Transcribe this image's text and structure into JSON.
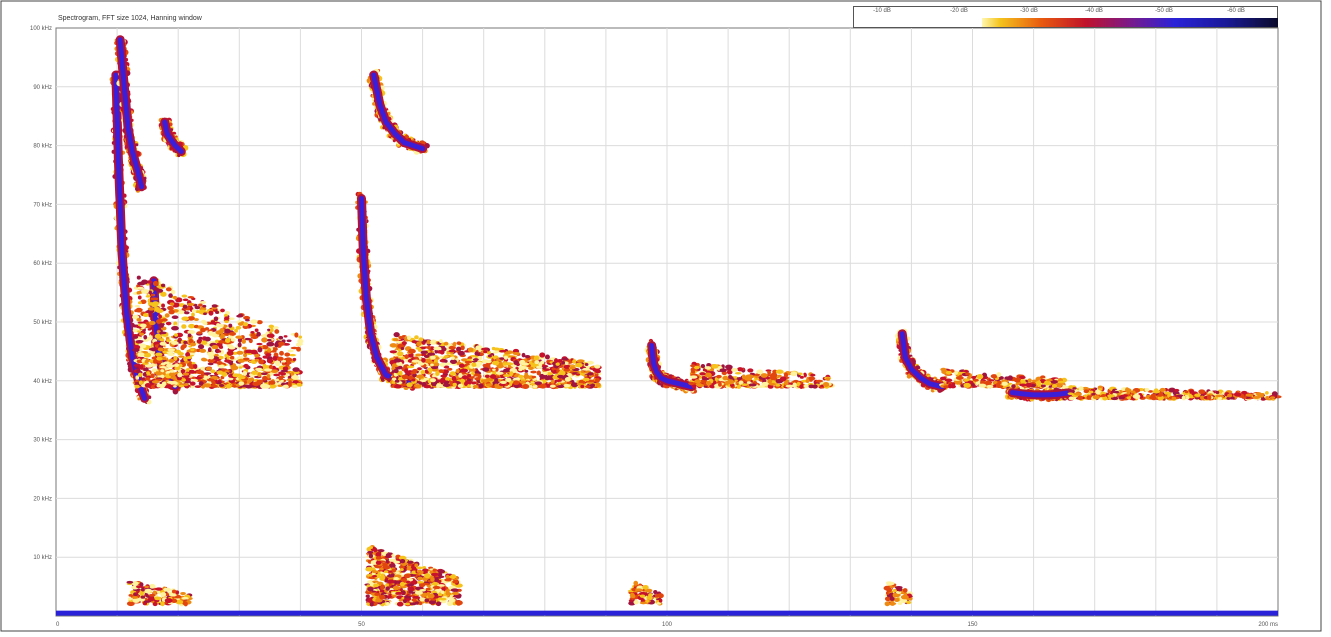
{
  "chart_data": {
    "type": "heatmap",
    "title": "Spectrogram, FFT size 1024, Hanning window",
    "xlabel": "",
    "ylabel": "",
    "x_tick_labels": [
      "0",
      "50",
      "100",
      "150",
      "200 ms"
    ],
    "x_tick_values": [
      0,
      50,
      100,
      150,
      200
    ],
    "xlim": [
      0,
      200
    ],
    "y_tick_labels": [
      "10 kHz",
      "20 kHz",
      "30 kHz",
      "40 kHz",
      "50 kHz",
      "60 kHz",
      "70 kHz",
      "80 kHz",
      "90 kHz",
      "100 kHz"
    ],
    "y_tick_values": [
      10,
      20,
      30,
      40,
      50,
      60,
      70,
      80,
      90,
      100
    ],
    "ylim": [
      0,
      100
    ],
    "grid": true,
    "colorbar": {
      "tick_labels": [
        "-10 dB",
        "-20 dB",
        "-30 dB",
        "-40 dB",
        "-50 dB",
        "-60 dB"
      ],
      "position": "top-right",
      "colors": [
        "#fff7b0",
        "#f4c41d",
        "#e85a0f",
        "#c0122a",
        "#7a1a8a",
        "#2a22d8",
        "#1a1a9a",
        "#0a0a2a"
      ]
    },
    "components": [
      {
        "kind": "fm_sweep",
        "t": [
          9.8,
          10.2,
          10.8,
          11.5,
          12.5,
          13.5,
          14.5
        ],
        "f": [
          92,
          78,
          62,
          52,
          44,
          40,
          37
        ]
      },
      {
        "kind": "fm_sweep",
        "t": [
          10.5,
          11.0,
          11.8,
          12.5,
          13.3,
          14.0
        ],
        "f": [
          98,
          92,
          83,
          79,
          76,
          73
        ]
      },
      {
        "kind": "fm_sweep",
        "t": [
          16.0,
          16.3,
          16.8,
          17.5,
          18.5,
          19.5
        ],
        "f": [
          57,
          50,
          45,
          42,
          40,
          39
        ]
      },
      {
        "kind": "fm_sweep",
        "t": [
          17.8,
          18.2,
          18.8,
          19.5,
          20.5
        ],
        "f": [
          84,
          82,
          81,
          80,
          79
        ]
      },
      {
        "kind": "fm_sweep",
        "t": [
          50.0,
          50.3,
          50.8,
          51.5,
          52.5,
          54.0,
          56.0,
          58.0
        ],
        "f": [
          71,
          62,
          54,
          48,
          44,
          41,
          40,
          39.5
        ]
      },
      {
        "kind": "fm_sweep",
        "t": [
          52.0,
          53.0,
          54.0,
          55.5,
          57.0,
          60.0
        ],
        "f": [
          92,
          87,
          84,
          82,
          80.5,
          79.5
        ]
      },
      {
        "kind": "fm_sweep",
        "t": [
          97.5,
          97.8,
          98.3,
          99.0,
          100.0,
          102.0,
          104.0
        ],
        "f": [
          46,
          43,
          41.5,
          40.5,
          40,
          39.5,
          39
        ]
      },
      {
        "kind": "fm_sweep",
        "t": [
          138.5,
          139.0,
          140.0,
          141.5,
          143.0,
          145.0
        ],
        "f": [
          48,
          44,
          42,
          40.5,
          39.5,
          39
        ]
      },
      {
        "kind": "fm_sweep",
        "t": [
          156.5,
          158.0,
          160.0,
          162.0,
          164.0,
          166.0
        ],
        "f": [
          38,
          37.8,
          37.6,
          37.6,
          37.7,
          38
        ]
      },
      {
        "kind": "echo_cloud",
        "t_range": [
          13,
          40
        ],
        "f_range": [
          39,
          58
        ]
      },
      {
        "kind": "echo_cloud",
        "t_range": [
          55,
          89
        ],
        "f_range": [
          39,
          48
        ]
      },
      {
        "kind": "echo_cloud",
        "t_range": [
          104,
          127
        ],
        "f_range": [
          39,
          43
        ]
      },
      {
        "kind": "echo_cloud",
        "t_range": [
          145,
          165
        ],
        "f_range": [
          39,
          42
        ]
      },
      {
        "kind": "echo_cloud",
        "t_range": [
          166,
          200
        ],
        "f_range": [
          37,
          39
        ]
      },
      {
        "kind": "low_burst",
        "t_range": [
          51,
          66
        ],
        "f_range": [
          2,
          12
        ]
      },
      {
        "kind": "low_burst",
        "t_range": [
          94,
          99
        ],
        "f_range": [
          2,
          6
        ]
      },
      {
        "kind": "low_burst",
        "t_range": [
          136,
          140
        ],
        "f_range": [
          2,
          6
        ]
      },
      {
        "kind": "low_burst",
        "t_range": [
          12,
          22
        ],
        "f_range": [
          2,
          6
        ]
      },
      {
        "kind": "baseline",
        "t_range": [
          0,
          200
        ],
        "f": 0.4
      }
    ]
  }
}
